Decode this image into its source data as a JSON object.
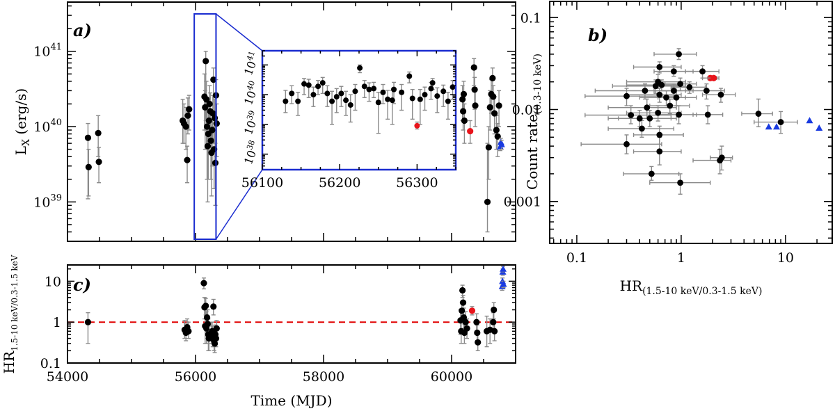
{
  "colors": {
    "point": "#000000",
    "error_bar": "#8a8a8a",
    "highlight": "#e8141b",
    "triangle": "#1a3be0",
    "inset_box": "#1a2cd0",
    "ref_line": "#e00000"
  },
  "chart_data": [
    {
      "id": "panel-a",
      "type": "scatter",
      "panel_label": "a)",
      "ylabel": "L",
      "ylabel_sub": "X",
      "ylabel_unit": " (erg/s)",
      "xlim": [
        54000,
        61000
      ],
      "ylim": [
        3e+38,
        4.5e+41
      ],
      "yscale": "log",
      "y_ticks": [
        {
          "v": 1e+39,
          "base": "10",
          "exp": "39"
        },
        {
          "v": 1e+40,
          "base": "10",
          "exp": "40"
        },
        {
          "v": 1e+41,
          "base": "10",
          "exp": "41"
        }
      ],
      "x_ticks": [
        54000,
        56000,
        58000,
        60000
      ],
      "points": [
        [
          54320,
          7.1e+39,
          1.1e+39,
          1.1e+40
        ],
        [
          54330,
          2.9e+39,
          1.2e+39,
          5e+39
        ],
        [
          54480,
          8.2e+39,
          4e+39,
          1.4e+40
        ],
        [
          54490,
          3.4e+39,
          1.8e+39,
          5.3e+39
        ],
        [
          55800,
          1.2e+40,
          6e+39,
          2.3e+40
        ],
        [
          55820,
          1.1e+40,
          6e+39,
          2e+40
        ],
        [
          55850,
          1e+40,
          5e+39,
          1.8e+40
        ],
        [
          55880,
          1.4e+40,
          8e+39,
          2.4e+40
        ],
        [
          55900,
          1.7e+40,
          9e+39,
          2.6e+40
        ],
        [
          55870,
          3.6e+39,
          1.8e+39,
          5.5e+39
        ],
        [
          56140,
          2.5e+40,
          9e+39,
          5e+40
        ],
        [
          56150,
          1.8e+40,
          5e+39,
          3e+40
        ],
        [
          56160,
          7.4e+40,
          1.2e+40,
          1e+41
        ],
        [
          56170,
          2.3e+40,
          5e+39,
          4e+40
        ],
        [
          56180,
          1e+40,
          2e+39,
          2e+40
        ],
        [
          56190,
          5.5e+39,
          1e+39,
          1.2e+40
        ],
        [
          56200,
          8e+39,
          2e+39,
          1.6e+40
        ],
        [
          56210,
          1.2e+40,
          5e+39,
          2.4e+40
        ],
        [
          56220,
          2e+40,
          9e+39,
          3.5e+40
        ],
        [
          56230,
          1.6e+40,
          6e+39,
          2.8e+40
        ],
        [
          56240,
          6.5e+39,
          2e+39,
          1.2e+40
        ],
        [
          56250,
          4.5e+39,
          1.2e+39,
          1e+40
        ],
        [
          56260,
          9e+39,
          3e+39,
          1.6e+40
        ],
        [
          56270,
          1.5e+40,
          7e+39,
          2.6e+40
        ],
        [
          56280,
          4.2e+40,
          1.5e+40,
          6e+40
        ],
        [
          56290,
          5e+39,
          1.5e+39,
          1e+40
        ],
        [
          56300,
          1.3e+40,
          6e+39,
          2.3e+40
        ],
        [
          56310,
          3.3e+39,
          9e+38,
          6e+39
        ],
        [
          56320,
          2.6e+40,
          1.1e+40,
          4.2e+40
        ],
        [
          56330,
          1.1e+40,
          4e+39,
          2e+40
        ],
        [
          60170,
          2.3e+40,
          1.2e+40,
          3.5e+40
        ],
        [
          60180,
          1.6e+40,
          9e+39,
          2.5e+40
        ],
        [
          60190,
          2.7e+40,
          1.5e+40,
          4e+40
        ],
        [
          60200,
          1.2e+40,
          6e+39,
          2e+40
        ],
        [
          60350,
          6.1e+40,
          3.5e+40,
          8e+40
        ],
        [
          60360,
          3.1e+40,
          1.7e+40,
          4.5e+40
        ],
        [
          60370,
          1.9e+40,
          1e+40,
          3e+40
        ],
        [
          60560,
          1e+39,
          4e+38,
          6e+39
        ],
        [
          60580,
          5.3e+39,
          2e+39,
          1e+40
        ],
        [
          60600,
          1.8e+40,
          9e+39,
          3e+40
        ],
        [
          60620,
          2.7e+40,
          1.5e+40,
          4.2e+40
        ],
        [
          60640,
          4.4e+40,
          2.5e+40,
          6e+40
        ],
        [
          60650,
          2.5e+40,
          1.5e+40,
          3.5e+40
        ],
        [
          60670,
          1.5e+40,
          8e+39,
          2.5e+40
        ],
        [
          60700,
          9e+39,
          5e+39,
          1.4e+40
        ],
        [
          60720,
          7.4e+39,
          4e+39,
          1.1e+40
        ],
        [
          60740,
          1.9e+40,
          1e+40,
          3e+40
        ]
      ],
      "highlight": [
        [
          60290,
          8.7e+39,
          6e+39,
          1.2e+40
        ]
      ],
      "triangles": [
        [
          60760,
          5.4e+39,
          4.8e+39,
          6.1e+39
        ],
        [
          60770,
          6.2e+39,
          5.5e+39,
          7e+39
        ],
        [
          60780,
          5.8e+39,
          5e+39,
          6.6e+39
        ]
      ],
      "zoom_range": [
        55980,
        56320
      ]
    },
    {
      "id": "panel-a-inset",
      "type": "scatter",
      "xlim": [
        56100,
        56350
      ],
      "ylim": [
        3e+37,
        3e+41
      ],
      "yscale": "log",
      "y_ticks": [
        {
          "v": 1e+38,
          "base": "10",
          "exp": "38"
        },
        {
          "v": 1e+39,
          "base": "10",
          "exp": "39"
        },
        {
          "v": 1e+40,
          "base": "10",
          "exp": "40"
        },
        {
          "v": 1e+41,
          "base": "10",
          "exp": "41"
        }
      ],
      "x_ticks": [
        56100,
        56200,
        56300
      ],
      "points": [
        [
          56130,
          6e+39,
          2.5e+39,
          1.4e+40
        ],
        [
          56138,
          1.1e+40,
          5e+39,
          2e+40
        ],
        [
          56146,
          6e+39,
          2e+39,
          1.2e+40
        ],
        [
          56154,
          2.3e+40,
          1e+40,
          3.5e+40
        ],
        [
          56160,
          2.1e+40,
          8e+39,
          3.3e+40
        ],
        [
          56166,
          1e+40,
          4e+39,
          1.8e+40
        ],
        [
          56172,
          1.9e+40,
          1e+40,
          3e+40
        ],
        [
          56178,
          2.5e+40,
          1.1e+40,
          3.8e+40
        ],
        [
          56184,
          1.1e+40,
          4e+39,
          2e+40
        ],
        [
          56190,
          6e+39,
          1e+39,
          1.3e+40
        ],
        [
          56196,
          8.5e+39,
          2.5e+39,
          1.6e+40
        ],
        [
          56202,
          1.1e+40,
          4e+39,
          1.9e+40
        ],
        [
          56208,
          6.5e+39,
          2e+39,
          1.3e+40
        ],
        [
          56214,
          4.5e+39,
          1.2e+39,
          1e+40
        ],
        [
          56220,
          1.3e+40,
          3e+39,
          2.2e+40
        ],
        [
          56226,
          7.9e+40,
          5.5e+40,
          1e+41
        ],
        [
          56232,
          1.9e+40,
          8e+39,
          3e+40
        ],
        [
          56238,
          1.5e+40,
          6e+39,
          2.5e+40
        ],
        [
          56244,
          1.6e+40,
          8e+39,
          2.6e+40
        ],
        [
          56250,
          5.5e+39,
          5e+38,
          1.2e+40
        ],
        [
          56256,
          1.2e+40,
          5e+39,
          2.2e+40
        ],
        [
          56262,
          7e+39,
          1.5e+39,
          1.4e+40
        ],
        [
          56268,
          6.5e+39,
          1e+39,
          1.4e+40
        ],
        [
          56280,
          1.2e+40,
          3e+39,
          2.2e+40
        ],
        [
          56294,
          7.5e+39,
          1.5e+39,
          1.5e+40
        ],
        [
          56304,
          7e+39,
          1e+39,
          1.5e+40
        ],
        [
          56318,
          1.6e+40,
          7e+39,
          2.6e+40
        ],
        [
          56326,
          9e+39,
          2.5e+39,
          1.7e+40
        ],
        [
          56334,
          1.3e+40,
          4e+39,
          2.1e+40
        ],
        [
          56340,
          6e+39,
          1.5e+39,
          1.2e+40
        ],
        [
          56346,
          1.8e+40,
          7e+39,
          3e+40
        ],
        [
          56290,
          4.2e+40,
          2.5e+40,
          5.8e+40
        ],
        [
          56320,
          2.5e+40,
          1.5e+40,
          3.5e+40
        ],
        [
          56310,
          1e+40,
          3e+39,
          1.8e+40
        ],
        [
          56270,
          1.5e+40,
          5e+39,
          2.6e+40
        ]
      ],
      "highlight": [
        [
          56300,
          9e+38,
          7e+38,
          1.2e+39
        ]
      ]
    },
    {
      "id": "panel-c",
      "type": "scatter",
      "panel_label": "c)",
      "ylabel": "HR",
      "ylabel_sub": "1.5-10 keV/0.3-1.5 keV",
      "xlabel": "Time (MJD)",
      "xlim": [
        54000,
        61000
      ],
      "ylim": [
        0.1,
        25
      ],
      "yscale": "log",
      "y_ticks": [
        {
          "v": 0.1,
          "label": "0.1"
        },
        {
          "v": 1,
          "label": "1"
        },
        {
          "v": 10,
          "label": "10"
        }
      ],
      "x_ticks": [
        54000,
        56000,
        58000,
        60000
      ],
      "ref_line": 1,
      "points": [
        [
          54320,
          1.0,
          0.3,
          1.7
        ],
        [
          55830,
          0.65,
          0.4,
          1.1
        ],
        [
          55850,
          0.55,
          0.35,
          0.9
        ],
        [
          55870,
          0.75,
          0.5,
          1.2
        ],
        [
          55890,
          0.6,
          0.4,
          1.0
        ],
        [
          56130,
          9.0,
          6.5,
          12
        ],
        [
          56140,
          2.3,
          1.2,
          4.0
        ],
        [
          56150,
          0.8,
          0.3,
          2.0
        ],
        [
          56160,
          2.5,
          1.5,
          3.8
        ],
        [
          56170,
          0.7,
          0.3,
          1.8
        ],
        [
          56180,
          1.3,
          0.6,
          2.4
        ],
        [
          56190,
          0.9,
          0.4,
          2.0
        ],
        [
          56200,
          0.5,
          0.2,
          1.2
        ],
        [
          56210,
          0.4,
          0.2,
          0.8
        ],
        [
          56250,
          0.55,
          0.3,
          1.0
        ],
        [
          56260,
          0.6,
          0.35,
          1.0
        ],
        [
          56270,
          0.45,
          0.25,
          0.8
        ],
        [
          56280,
          2.4,
          1.5,
          3.6
        ],
        [
          56290,
          0.35,
          0.2,
          0.6
        ],
        [
          56300,
          0.3,
          0.18,
          0.5
        ],
        [
          56310,
          0.5,
          0.3,
          0.85
        ],
        [
          56320,
          0.4,
          0.25,
          0.65
        ],
        [
          56330,
          0.7,
          0.4,
          1.1
        ],
        [
          60140,
          1.1,
          0.5,
          2.0
        ],
        [
          60150,
          0.6,
          0.3,
          1.1
        ],
        [
          60160,
          1.9,
          1.0,
          3.0
        ],
        [
          60170,
          6.0,
          4.0,
          8.0
        ],
        [
          60180,
          3.0,
          1.8,
          4.5
        ],
        [
          60190,
          1.3,
          0.7,
          2.2
        ],
        [
          60200,
          0.55,
          0.3,
          0.9
        ],
        [
          60220,
          1.0,
          0.5,
          1.8
        ],
        [
          60240,
          0.7,
          0.4,
          1.2
        ],
        [
          60390,
          1.0,
          0.6,
          1.6
        ],
        [
          60400,
          0.55,
          0.35,
          0.85
        ],
        [
          60410,
          0.32,
          0.2,
          0.5
        ],
        [
          60550,
          0.6,
          0.25,
          1.4
        ],
        [
          60600,
          0.65,
          0.3,
          1.2
        ],
        [
          60650,
          1.0,
          0.6,
          1.7
        ],
        [
          60660,
          2.0,
          1.2,
          3.0
        ],
        [
          60670,
          0.6,
          0.35,
          1.0
        ]
      ],
      "highlight": [
        [
          60320,
          1.9,
          1.5,
          2.4
        ]
      ],
      "triangles": [
        [
          60790,
          7.5,
          6,
          9
        ],
        [
          60795,
          10,
          8,
          12
        ],
        [
          60800,
          17,
          14,
          20
        ],
        [
          60805,
          20,
          17,
          23
        ],
        [
          60810,
          8.5,
          7,
          10
        ]
      ]
    },
    {
      "id": "panel-b",
      "type": "scatter",
      "panel_label": "b)",
      "ylabel": "Count rate",
      "ylabel_sub": "(0.3-10 keV)",
      "xlabel": "HR",
      "xlabel_sub": "(1.5-10 keV/0.3-1.5 keV)",
      "xscale": "log",
      "yscale": "log",
      "xlim": [
        0.055,
        28
      ],
      "ylim": [
        0.00035,
        0.15
      ],
      "x_ticks": [
        {
          "v": 0.1,
          "label": "0.1"
        },
        {
          "v": 1,
          "label": "1"
        },
        {
          "v": 10,
          "label": "10"
        }
      ],
      "y_ticks": [
        {
          "v": 0.001,
          "label": "0.001"
        },
        {
          "v": 0.01,
          "label": "0.01"
        },
        {
          "v": 0.1,
          "label": "0.1"
        }
      ],
      "points": [
        [
          0.95,
          0.04,
          0.55,
          1.4,
          0.035,
          0.046
        ],
        [
          0.62,
          0.029,
          0.35,
          1.0,
          0.025,
          0.033
        ],
        [
          0.85,
          0.026,
          0.55,
          1.3,
          0.023,
          0.03
        ],
        [
          1.6,
          0.026,
          1.1,
          2.3,
          0.022,
          0.03
        ],
        [
          0.6,
          0.02,
          0.3,
          1.1,
          0.017,
          0.024
        ],
        [
          0.57,
          0.018,
          0.22,
          1.1,
          0.015,
          0.021
        ],
        [
          0.65,
          0.0185,
          0.3,
          1.0,
          0.016,
          0.021
        ],
        [
          0.98,
          0.019,
          0.7,
          1.4,
          0.016,
          0.022
        ],
        [
          1.2,
          0.0175,
          0.8,
          1.7,
          0.015,
          0.02
        ],
        [
          0.85,
          0.016,
          0.55,
          1.3,
          0.013,
          0.019
        ],
        [
          1.75,
          0.016,
          1.1,
          2.6,
          0.013,
          0.019
        ],
        [
          0.45,
          0.016,
          0.15,
          0.9,
          0.013,
          0.019
        ],
        [
          0.62,
          0.0145,
          0.3,
          1.0,
          0.012,
          0.017
        ],
        [
          0.3,
          0.014,
          0.12,
          0.9,
          0.011,
          0.017
        ],
        [
          0.72,
          0.0135,
          0.4,
          1.1,
          0.011,
          0.016
        ],
        [
          0.9,
          0.0135,
          0.6,
          1.4,
          0.011,
          0.016
        ],
        [
          2.4,
          0.0145,
          1.6,
          3.3,
          0.012,
          0.017
        ],
        [
          0.78,
          0.011,
          0.5,
          1.2,
          0.009,
          0.013
        ],
        [
          0.47,
          0.0105,
          0.2,
          0.9,
          0.008,
          0.013
        ],
        [
          0.6,
          0.0092,
          0.3,
          1.0,
          0.0075,
          0.011
        ],
        [
          1.8,
          0.0088,
          1.3,
          2.5,
          0.007,
          0.011
        ],
        [
          0.95,
          0.0088,
          0.6,
          1.4,
          0.007,
          0.011
        ],
        [
          0.33,
          0.0087,
          0.12,
          0.8,
          0.007,
          0.011
        ],
        [
          0.4,
          0.008,
          0.2,
          0.8,
          0.0065,
          0.0098
        ],
        [
          0.5,
          0.008,
          0.25,
          0.9,
          0.0065,
          0.0098
        ],
        [
          0.42,
          0.0062,
          0.2,
          0.85,
          0.005,
          0.0076
        ],
        [
          5.5,
          0.009,
          3.8,
          7.5,
          0.0065,
          0.013
        ],
        [
          9.0,
          0.0073,
          5.0,
          13,
          0.0055,
          0.0095
        ],
        [
          0.62,
          0.0053,
          0.35,
          1.05,
          0.0042,
          0.0066
        ],
        [
          0.3,
          0.0042,
          0.11,
          0.65,
          0.0033,
          0.0053
        ],
        [
          0.62,
          0.0035,
          0.35,
          1.0,
          0.0025,
          0.005
        ],
        [
          2.45,
          0.003,
          1.9,
          3.1,
          0.0022,
          0.004
        ],
        [
          2.35,
          0.0028,
          1.3,
          3.0,
          0.002,
          0.0037
        ],
        [
          0.52,
          0.002,
          0.28,
          0.95,
          0.0017,
          0.0024
        ],
        [
          0.98,
          0.0016,
          0.5,
          1.9,
          0.0012,
          0.002
        ]
      ],
      "highlight": [
        [
          1.9,
          0.022,
          1.6,
          2.2,
          0.02,
          0.024
        ],
        [
          2.05,
          0.022,
          1.8,
          2.3,
          0.02,
          0.024
        ]
      ],
      "triangles": [
        [
          6.9,
          0.0065
        ],
        [
          8.2,
          0.0065
        ],
        [
          17.0,
          0.0076
        ],
        [
          21.0,
          0.0063
        ]
      ]
    }
  ]
}
